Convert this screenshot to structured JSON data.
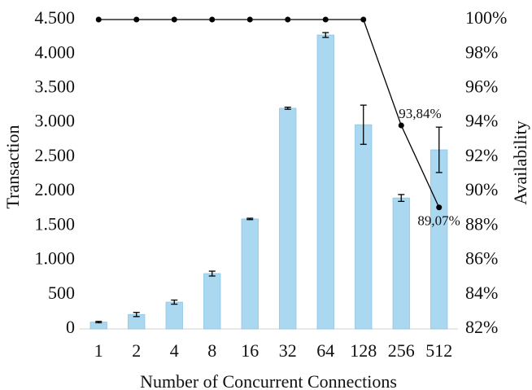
{
  "chart_data": {
    "type": "bar",
    "x_label": "Number of Concurrent Connections",
    "y_label": "Transaction",
    "y2_label": "Availability",
    "categories": [
      "1",
      "2",
      "4",
      "8",
      "16",
      "32",
      "64",
      "128",
      "256",
      "512"
    ],
    "series": [
      {
        "type": "bar",
        "color": "#a9d8f0",
        "values": [
          100,
          210,
          390,
          805,
          1600,
          3210,
          4275,
          2970,
          1905,
          2605
        ],
        "errors": [
          10,
          30,
          30,
          35,
          10,
          15,
          35,
          285,
          50,
          330
        ]
      },
      {
        "type": "line",
        "axis": "y2",
        "color": "#000000",
        "values": [
          100,
          100,
          100,
          100,
          100,
          100,
          100,
          100,
          93.84,
          89.07
        ],
        "value_labels": [
          null,
          null,
          null,
          null,
          null,
          null,
          null,
          null,
          "93,84%",
          "89,07%"
        ]
      }
    ],
    "ylim": [
      0,
      4500
    ],
    "yticks": [
      0,
      500,
      {
        "value": 1000,
        "label": "1.000"
      },
      {
        "value": 1500,
        "label": "1.500"
      },
      {
        "value": 2000,
        "label": "2.000"
      },
      {
        "value": 2500,
        "label": "2.500"
      },
      {
        "value": 3000,
        "label": "3.000"
      },
      {
        "value": 3500,
        "label": "3.500"
      },
      {
        "value": 4000,
        "label": "4.000"
      },
      {
        "value": 4500,
        "label": "4.500"
      }
    ],
    "y2lim": [
      82,
      100
    ],
    "y2ticks": [
      {
        "value": 82,
        "label": "82%"
      },
      {
        "value": 84,
        "label": "84%"
      },
      {
        "value": 86,
        "label": "86%"
      },
      {
        "value": 88,
        "label": "88%"
      },
      {
        "value": 90,
        "label": "90%"
      },
      {
        "value": 92,
        "label": "92%"
      },
      {
        "value": 94,
        "label": "94%"
      },
      {
        "value": 96,
        "label": "96%"
      },
      {
        "value": 98,
        "label": "98%"
      },
      {
        "value": 100,
        "label": "100%"
      }
    ],
    "grid": false
  }
}
